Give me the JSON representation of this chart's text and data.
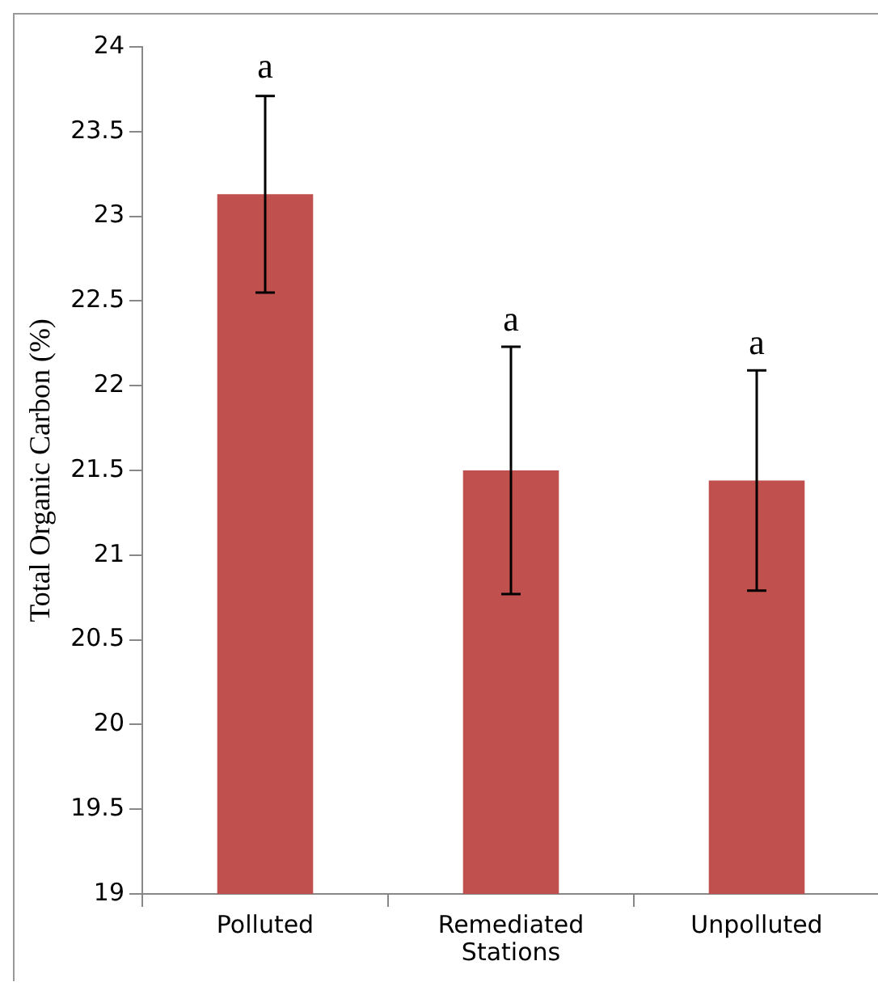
{
  "chart_data": {
    "type": "bar",
    "xlabel": "Stations",
    "ylabel": "Total Organic Carbon (%)",
    "categories": [
      "Polluted",
      "Remediated",
      "Unpolluted"
    ],
    "values": [
      23.13,
      21.5,
      21.44
    ],
    "errors": [
      0.58,
      0.73,
      0.65
    ],
    "color": "#c0504d",
    "ylim": [
      19,
      24
    ],
    "yticks": [
      19,
      19.5,
      20,
      20.5,
      21,
      21.5,
      22,
      22.5,
      23,
      23.5,
      24
    ],
    "grid": false,
    "legend": false,
    "annotations": [
      {
        "text": "a",
        "x": "Polluted",
        "y": 23.71
      },
      {
        "text": "a",
        "x": "Remediated",
        "y": 22.22
      },
      {
        "text": "a",
        "x": "Unpolluted",
        "y": 22.08
      }
    ]
  }
}
